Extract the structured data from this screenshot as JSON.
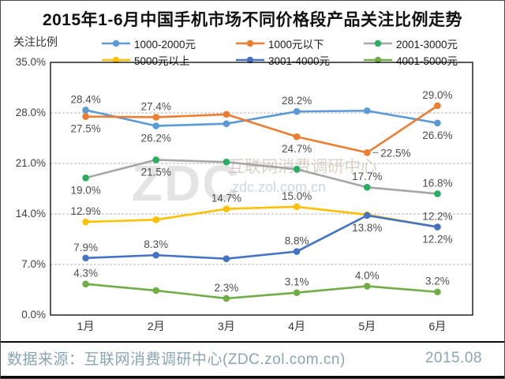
{
  "chart_data": {
    "type": "line",
    "title": "2015年1-6月中国手机市场不同价格段产品关注比例走势",
    "ylabel": "关注比例",
    "xlabel": "",
    "categories": [
      "1月",
      "2月",
      "3月",
      "4月",
      "5月",
      "6月"
    ],
    "yticks": [
      "0.0%",
      "7.0%",
      "14.0%",
      "21.0%",
      "28.0%",
      "35.0%"
    ],
    "ylim": [
      0,
      35
    ],
    "grid": "horizontal-dashed",
    "legend_position": "top",
    "series": [
      {
        "name": "1000-2000元",
        "line_color": "#5B9BD5",
        "marker_color": "#5B9BD5",
        "values": [
          28.4,
          26.2,
          26.5,
          28.2,
          28.3,
          26.6
        ],
        "labels": [
          "28.4%",
          "26.2%",
          null,
          "28.2%",
          null,
          "26.6%"
        ],
        "label_pos": [
          "above",
          "below",
          null,
          "above",
          null,
          "below"
        ]
      },
      {
        "name": "1000元以下",
        "line_color": "#ED7D31",
        "marker_color": "#ED7D31",
        "values": [
          27.5,
          27.4,
          27.8,
          24.7,
          22.5,
          29.0
        ],
        "labels": [
          "27.5%",
          "27.4%",
          null,
          "24.7%",
          "22.5%",
          "29.0%"
        ],
        "label_pos": [
          "below",
          "above",
          null,
          "below",
          "right",
          "above"
        ]
      },
      {
        "name": "2001-3000元",
        "line_color": "#A6A6A6",
        "marker_color": "#27AE60",
        "values": [
          19.0,
          21.5,
          21.2,
          20.2,
          17.7,
          16.8
        ],
        "labels": [
          "19.0%",
          "21.5%",
          null,
          null,
          "17.7%",
          "16.8%"
        ],
        "label_pos": [
          "below",
          "below",
          null,
          null,
          "above",
          "above"
        ]
      },
      {
        "name": "5000元以上",
        "line_color": "#FFC000",
        "marker_color": "#FFC000",
        "values": [
          12.9,
          13.2,
          14.7,
          15.0,
          13.9,
          12.2
        ],
        "labels": [
          "12.9%",
          null,
          "14.7%",
          "15.0%",
          null,
          "12.2%"
        ],
        "label_pos": [
          "above",
          null,
          "above",
          "above",
          null,
          "above"
        ]
      },
      {
        "name": "3001-4000元",
        "line_color": "#4472C4",
        "marker_color": "#4472C4",
        "values": [
          7.9,
          8.3,
          7.8,
          8.8,
          13.8,
          12.2
        ],
        "labels": [
          "7.9%",
          "8.3%",
          null,
          "8.8%",
          "13.8%",
          "12.2%"
        ],
        "label_pos": [
          "above",
          "above",
          null,
          "above",
          "below",
          "below"
        ]
      },
      {
        "name": "4001-5000元",
        "line_color": "#70AD47",
        "marker_color": "#70AD47",
        "values": [
          4.3,
          3.4,
          2.3,
          3.1,
          4.0,
          3.2
        ],
        "labels": [
          "4.3%",
          null,
          "2.3%",
          "3.1%",
          "4.0%",
          "3.2%"
        ],
        "label_pos": [
          "above",
          null,
          "above",
          "above",
          "above",
          "above"
        ]
      }
    ],
    "draw_order": [
      5,
      2,
      3,
      4,
      0,
      1
    ],
    "watermark": {
      "big": "ZDC",
      "line1": "互联网消费调研中心",
      "line2": "zdc.zol.com.cn"
    }
  },
  "footer": {
    "source": "数据来源：互联网消费调研中心(ZDC.zol.com.cn)",
    "date": "2015.08"
  }
}
